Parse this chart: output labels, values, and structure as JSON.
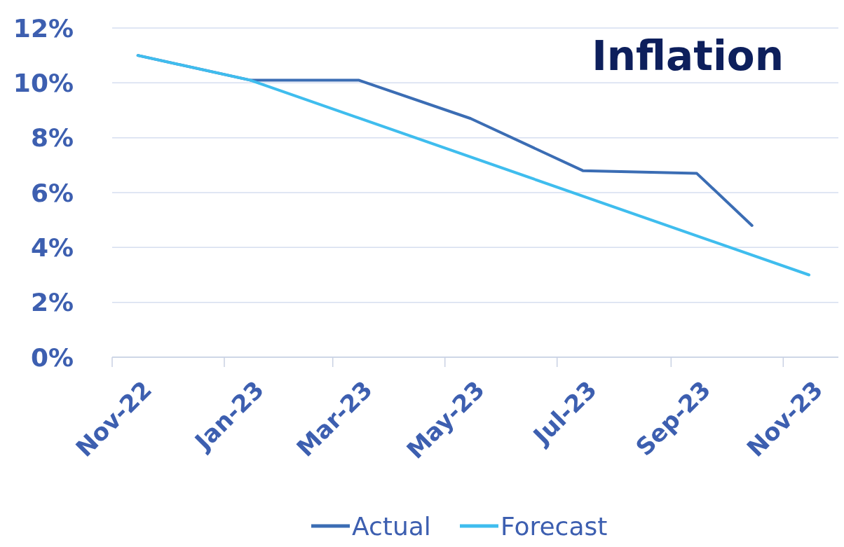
{
  "chart_data": {
    "type": "line",
    "title": "Inflation",
    "ylim": [
      0,
      12
    ],
    "yticks": [
      {
        "value": 0,
        "label": "0%"
      },
      {
        "value": 2,
        "label": "2%"
      },
      {
        "value": 4,
        "label": "4%"
      },
      {
        "value": 6,
        "label": "6%"
      },
      {
        "value": 8,
        "label": "8%"
      },
      {
        "value": 10,
        "label": "10%"
      },
      {
        "value": 12,
        "label": "12%"
      }
    ],
    "xlim": [
      "2022-11-01",
      "2023-12-01"
    ],
    "xticks": [
      {
        "value": "2022-11",
        "label": "Nov-22"
      },
      {
        "value": "2023-01",
        "label": "Jan-23"
      },
      {
        "value": "2023-03",
        "label": "Mar-23"
      },
      {
        "value": "2023-05",
        "label": "May-23"
      },
      {
        "value": "2023-07",
        "label": "Jul-23"
      },
      {
        "value": "2023-09",
        "label": "Sep-23"
      },
      {
        "value": "2023-11",
        "label": "Nov-23"
      }
    ],
    "series": [
      {
        "name": "Actual",
        "color": "#3b6db4",
        "x": [
          "2022-11-15",
          "2023-01-15",
          "2023-03-15",
          "2023-05-15",
          "2023-07-15",
          "2023-09-15",
          "2023-10-15"
        ],
        "values": [
          11.0,
          10.1,
          10.1,
          8.7,
          6.8,
          6.7,
          4.8
        ]
      },
      {
        "name": "Forecast",
        "color": "#3fbdee",
        "x": [
          "2022-11-15",
          "2023-01-15",
          "2023-11-15"
        ],
        "values": [
          11.0,
          10.1,
          3.0
        ]
      }
    ],
    "grid": "y",
    "legend": "bottom"
  }
}
